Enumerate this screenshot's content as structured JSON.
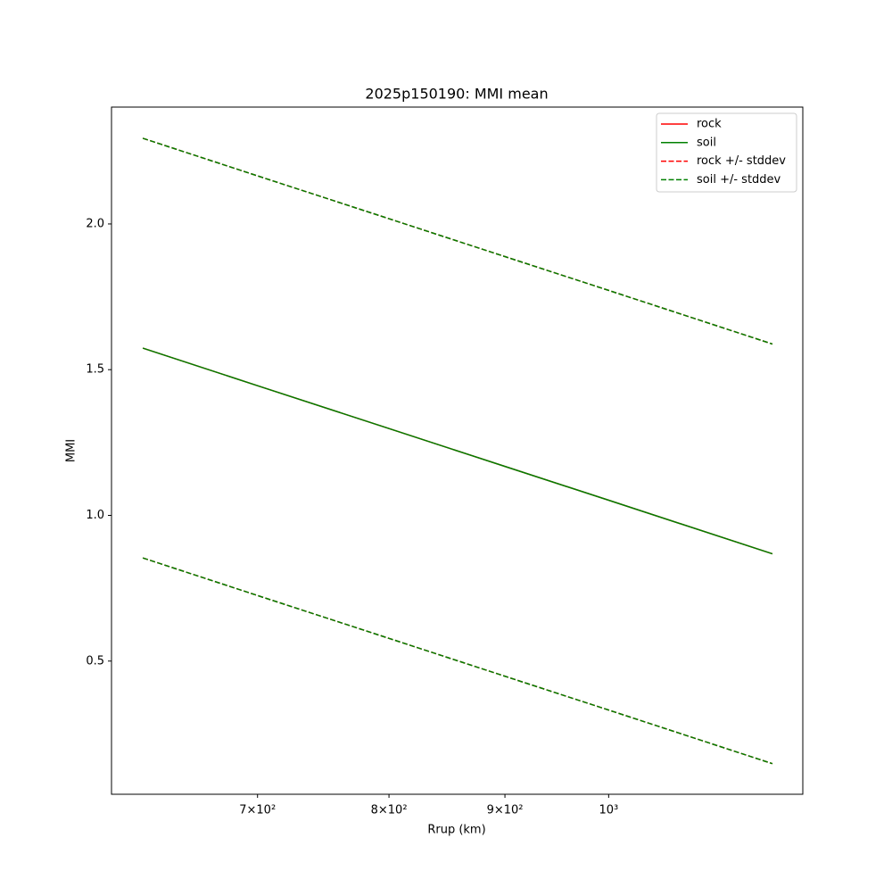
{
  "chart_data": {
    "type": "line",
    "title": "2025p150190: MMI mean",
    "xlabel": "Rrup (km)",
    "ylabel": "MMI",
    "x": [
      623,
      700,
      800,
      900,
      1000,
      1181
    ],
    "xscale": "log",
    "xlim": [
      603.5,
      1218
    ],
    "ylim": [
      0.043,
      2.401
    ],
    "xticks": [
      {
        "value": 700,
        "label": "7×10²"
      },
      {
        "value": 800,
        "label": "8×10²"
      },
      {
        "value": 900,
        "label": "9×10²"
      },
      {
        "value": 1000,
        "label": "10³"
      }
    ],
    "yticks": [
      0.5,
      {
        "value": 1,
        "label": "1.0"
      },
      1.5,
      {
        "value": 2,
        "label": "2.0"
      }
    ],
    "legend": "upper right",
    "grid": false,
    "series": [
      {
        "name": "rock",
        "color": "#ff0000",
        "dashed": false,
        "values": [
          1.574,
          1.445,
          1.298,
          1.168,
          1.052,
          0.868
        ]
      },
      {
        "name": "soil",
        "color": "#008000",
        "dashed": false,
        "values": [
          1.574,
          1.445,
          1.298,
          1.168,
          1.052,
          0.868
        ]
      },
      {
        "name": "rock +/- stddev",
        "color": "#ff0000",
        "dashed": true,
        "upper": [
          2.294,
          2.165,
          2.018,
          1.888,
          1.772,
          1.588
        ],
        "lower": [
          0.854,
          0.725,
          0.578,
          0.448,
          0.332,
          0.148
        ]
      },
      {
        "name": "soil +/- stddev",
        "color": "#008000",
        "dashed": true,
        "upper": [
          2.294,
          2.165,
          2.018,
          1.888,
          1.772,
          1.588
        ],
        "lower": [
          0.854,
          0.725,
          0.578,
          0.448,
          0.332,
          0.148
        ]
      }
    ]
  }
}
